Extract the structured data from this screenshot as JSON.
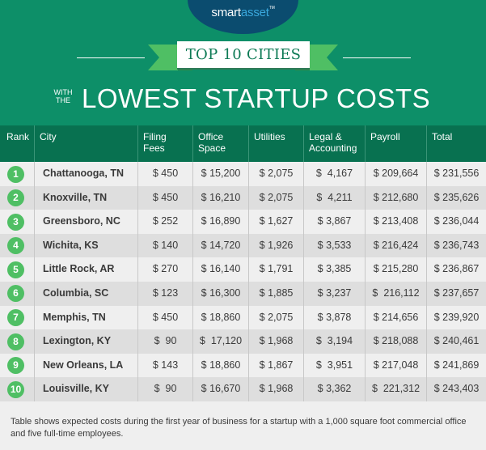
{
  "header": {
    "logo": {
      "part1": "smart",
      "part2": "asset",
      "tm": "TM"
    },
    "banner": "TOP 10 CITIES",
    "subtitle_small_line1": "WITH",
    "subtitle_small_line2": "THE",
    "subtitle_big": "LOWEST STARTUP COSTS"
  },
  "colors": {
    "background_green": "#0d8f68",
    "header_green": "#087150",
    "badge_green": "#4fbf64",
    "logo_navy": "#0b4c6f",
    "logo_blue": "#3aa8dd",
    "row_light": "#efefef",
    "row_dark": "#dedede"
  },
  "table": {
    "columns": [
      {
        "line1": "Rank",
        "line2": ""
      },
      {
        "line1": "City",
        "line2": ""
      },
      {
        "line1": "Filing",
        "line2": "Fees"
      },
      {
        "line1": "Office",
        "line2": "Space"
      },
      {
        "line1": "Utilities",
        "line2": ""
      },
      {
        "line1": "Legal &",
        "line2": "Accounting"
      },
      {
        "line1": "Payroll",
        "line2": ""
      },
      {
        "line1": "Total",
        "line2": ""
      }
    ],
    "rows": [
      {
        "rank": "1",
        "city": "Chattanooga, TN",
        "filing": "$ 450",
        "office": "$ 15,200",
        "utilities": "$ 2,075",
        "legal": "$  4,167",
        "payroll": "$ 209,664",
        "total": "$ 231,556"
      },
      {
        "rank": "2",
        "city": "Knoxville, TN",
        "filing": "$ 450",
        "office": "$ 16,210",
        "utilities": "$ 2,075",
        "legal": "$  4,211",
        "payroll": "$ 212,680",
        "total": "$ 235,626"
      },
      {
        "rank": "3",
        "city": "Greensboro, NC",
        "filing": "$ 252",
        "office": "$ 16,890",
        "utilities": "$ 1,627",
        "legal": "$ 3,867",
        "payroll": "$ 213,408",
        "total": "$ 236,044"
      },
      {
        "rank": "4",
        "city": "Wichita, KS",
        "filing": "$ 140",
        "office": "$ 14,720",
        "utilities": "$ 1,926",
        "legal": "$ 3,533",
        "payroll": "$ 216,424",
        "total": "$ 236,743"
      },
      {
        "rank": "5",
        "city": "Little Rock, AR",
        "filing": "$ 270",
        "office": "$ 16,140",
        "utilities": "$ 1,791",
        "legal": "$ 3,385",
        "payroll": "$ 215,280",
        "total": "$ 236,867"
      },
      {
        "rank": "6",
        "city": "Columbia, SC",
        "filing": "$ 123",
        "office": "$ 16,300",
        "utilities": "$ 1,885",
        "legal": "$ 3,237",
        "payroll": "$  216,112",
        "total": "$ 237,657"
      },
      {
        "rank": "7",
        "city": "Memphis, TN",
        "filing": "$ 450",
        "office": "$ 18,860",
        "utilities": "$ 2,075",
        "legal": "$ 3,878",
        "payroll": "$ 214,656",
        "total": "$ 239,920"
      },
      {
        "rank": "8",
        "city": "Lexington, KY",
        "filing": "$  90",
        "office": "$  17,120",
        "utilities": "$ 1,968",
        "legal": "$  3,194",
        "payroll": "$ 218,088",
        "total": "$ 240,461"
      },
      {
        "rank": "9",
        "city": "New Orleans, LA",
        "filing": "$ 143",
        "office": "$ 18,860",
        "utilities": "$ 1,867",
        "legal": "$  3,951",
        "payroll": "$ 217,048",
        "total": "$ 241,869"
      },
      {
        "rank": "10",
        "city": "Louisville, KY",
        "filing": "$  90",
        "office": "$ 16,670",
        "utilities": "$ 1,968",
        "legal": "$ 3,362",
        "payroll": "$  221,312",
        "total": "$ 243,403"
      }
    ]
  },
  "footnote": "Table shows expected costs during the first year of business for a startup with a 1,000 square foot commercial office and five full-time employees.",
  "chart_data": {
    "type": "table",
    "title": "Top 10 Cities With the Lowest Startup Costs",
    "columns": [
      "Rank",
      "City",
      "Filing Fees",
      "Office Space",
      "Utilities",
      "Legal & Accounting",
      "Payroll",
      "Total"
    ],
    "rows": [
      [
        1,
        "Chattanooga, TN",
        450,
        15200,
        2075,
        4167,
        209664,
        231556
      ],
      [
        2,
        "Knoxville, TN",
        450,
        16210,
        2075,
        4211,
        212680,
        235626
      ],
      [
        3,
        "Greensboro, NC",
        252,
        16890,
        1627,
        3867,
        213408,
        236044
      ],
      [
        4,
        "Wichita, KS",
        140,
        14720,
        1926,
        3533,
        216424,
        236743
      ],
      [
        5,
        "Little Rock, AR",
        270,
        16140,
        1791,
        3385,
        215280,
        236867
      ],
      [
        6,
        "Columbia, SC",
        123,
        16300,
        1885,
        3237,
        216112,
        237657
      ],
      [
        7,
        "Memphis, TN",
        450,
        18860,
        2075,
        3878,
        214656,
        239920
      ],
      [
        8,
        "Lexington, KY",
        90,
        17120,
        1968,
        3194,
        218088,
        240461
      ],
      [
        9,
        "New Orleans, LA",
        143,
        18860,
        1867,
        3951,
        217048,
        241869
      ],
      [
        10,
        "Louisville, KY",
        90,
        16670,
        1968,
        3362,
        221312,
        243403
      ]
    ],
    "note": "Table shows expected costs during the first year of business for a startup with a 1,000 square foot commercial office and five full-time employees."
  }
}
